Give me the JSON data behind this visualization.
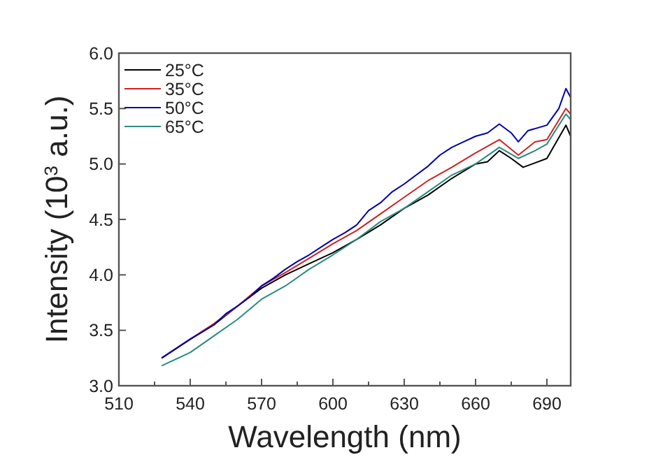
{
  "chart_data": {
    "type": "line",
    "xlabel": "Wavelength (nm)",
    "ylabel": "Intensity (10$^{3}$ a.u.)",
    "xlim": [
      510,
      700
    ],
    "ylim": [
      3.0,
      6.0
    ],
    "xticks": [
      510,
      {
        "value": 525,
        "label": null
      },
      540,
      {
        "value": 555,
        "label": null
      },
      570,
      {
        "value": 585,
        "label": null
      },
      600,
      {
        "value": 615,
        "label": null
      },
      630,
      {
        "value": 645,
        "label": null
      },
      660,
      {
        "value": 675,
        "label": null
      },
      690
    ],
    "yticks": [
      {
        "value": 3.0,
        "label": "3.0"
      },
      3.5,
      {
        "value": 4.0,
        "label": "4.0"
      },
      4.5,
      {
        "value": 5.0,
        "label": "5.0"
      },
      5.5,
      {
        "value": 6.0,
        "label": "6.0"
      }
    ],
    "legend": "top left",
    "grid": false,
    "line_style": "solid",
    "series": [
      {
        "name": "25°C",
        "color": "#000000",
        "x": [
          528,
          540,
          550,
          560,
          570,
          580,
          590,
          600,
          610,
          620,
          630,
          640,
          650,
          660,
          665,
          670,
          675,
          680,
          690,
          698,
          700
        ],
        "values": [
          3.25,
          3.42,
          3.55,
          3.72,
          3.88,
          4.0,
          4.1,
          4.2,
          4.32,
          4.45,
          4.6,
          4.72,
          4.87,
          5.0,
          5.02,
          5.12,
          5.05,
          4.97,
          5.05,
          5.35,
          5.25
        ]
      },
      {
        "name": "35°C",
        "color": "#cc2222",
        "x": [
          528,
          540,
          550,
          560,
          570,
          580,
          590,
          600,
          610,
          620,
          630,
          640,
          650,
          660,
          670,
          678,
          685,
          690,
          698,
          700
        ],
        "values": [
          3.25,
          3.42,
          3.56,
          3.72,
          3.9,
          4.02,
          4.15,
          4.28,
          4.4,
          4.55,
          4.7,
          4.85,
          4.97,
          5.1,
          5.22,
          5.08,
          5.2,
          5.22,
          5.5,
          5.45
        ]
      },
      {
        "name": "50°C",
        "color": "#0000aa",
        "x": [
          528,
          540,
          550,
          555,
          560,
          565,
          570,
          575,
          580,
          585,
          590,
          595,
          600,
          605,
          610,
          615,
          620,
          625,
          630,
          635,
          640,
          645,
          650,
          655,
          660,
          665,
          670,
          675,
          678,
          682,
          690,
          695,
          698,
          700
        ],
        "values": [
          3.25,
          3.42,
          3.55,
          3.65,
          3.72,
          3.8,
          3.9,
          3.97,
          4.05,
          4.12,
          4.18,
          4.25,
          4.32,
          4.38,
          4.45,
          4.58,
          4.65,
          4.75,
          4.82,
          4.9,
          4.98,
          5.08,
          5.15,
          5.2,
          5.25,
          5.28,
          5.36,
          5.28,
          5.2,
          5.3,
          5.35,
          5.5,
          5.68,
          5.6
        ]
      },
      {
        "name": "65°C",
        "color": "#2a8a80",
        "x": [
          528,
          540,
          550,
          560,
          570,
          580,
          590,
          600,
          610,
          620,
          630,
          640,
          650,
          660,
          670,
          678,
          685,
          690,
          698,
          700
        ],
        "values": [
          3.18,
          3.3,
          3.45,
          3.6,
          3.78,
          3.9,
          4.05,
          4.18,
          4.32,
          4.48,
          4.6,
          4.75,
          4.9,
          5.0,
          5.15,
          5.05,
          5.12,
          5.18,
          5.45,
          5.4
        ]
      }
    ]
  }
}
